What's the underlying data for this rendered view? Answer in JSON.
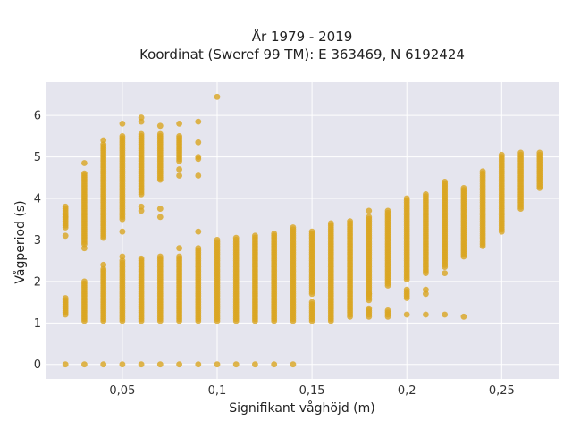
{
  "chart_data": {
    "type": "scatter",
    "title_line1": "År 1979 - 2019",
    "title_line2": "Koordinat (Sweref 99 TM): E 363469, N 6192424",
    "xlabel": "Signifikant våghöjd (m)",
    "ylabel": "Vågperiod (s)",
    "xlim": [
      0.01,
      0.28
    ],
    "ylim": [
      -0.35,
      6.8
    ],
    "x_ticks": [
      0.05,
      0.1,
      0.15,
      0.2,
      0.25
    ],
    "x_tick_labels": [
      "0,05",
      "0,1",
      "0,15",
      "0,2",
      "0,25"
    ],
    "y_ticks": [
      0,
      1,
      2,
      3,
      4,
      5,
      6
    ],
    "y_tick_labels": [
      "0",
      "1",
      "2",
      "3",
      "4",
      "5",
      "6"
    ],
    "grid": true,
    "colors": {
      "background": "#E5E5EE",
      "grid": "#FFFFFF",
      "marker": "#DAA520"
    },
    "columns": [
      {
        "x": 0.02,
        "ranges": [
          [
            1.2,
            1.6
          ],
          [
            3.3,
            3.8
          ]
        ],
        "points": [
          0,
          3.1,
          3.55
        ]
      },
      {
        "x": 0.03,
        "ranges": [
          [
            1.05,
            2.0
          ],
          [
            2.9,
            4.6
          ]
        ],
        "points": [
          0,
          2.8,
          4.85
        ]
      },
      {
        "x": 0.04,
        "ranges": [
          [
            1.05,
            2.3
          ],
          [
            3.05,
            5.3
          ]
        ],
        "points": [
          0,
          2.4,
          5.4
        ]
      },
      {
        "x": 0.05,
        "ranges": [
          [
            1.05,
            2.5
          ],
          [
            3.5,
            5.5
          ]
        ],
        "points": [
          0,
          2.6,
          3.2,
          5.8
        ]
      },
      {
        "x": 0.06,
        "ranges": [
          [
            1.05,
            2.55
          ],
          [
            4.1,
            5.55
          ]
        ],
        "points": [
          0,
          3.7,
          3.8,
          5.85,
          5.95
        ]
      },
      {
        "x": 0.07,
        "ranges": [
          [
            1.05,
            2.6
          ],
          [
            4.45,
            5.55
          ]
        ],
        "points": [
          0,
          3.55,
          3.75,
          5.75
        ]
      },
      {
        "x": 0.08,
        "ranges": [
          [
            1.05,
            2.6
          ],
          [
            4.9,
            5.5
          ]
        ],
        "points": [
          0,
          2.8,
          4.55,
          4.7,
          5.8
        ]
      },
      {
        "x": 0.09,
        "ranges": [
          [
            1.05,
            2.8
          ]
        ],
        "points": [
          0,
          3.2,
          4.55,
          4.95,
          5.0,
          5.35,
          5.85
        ]
      },
      {
        "x": 0.1,
        "ranges": [
          [
            1.05,
            2.95
          ]
        ],
        "points": [
          0,
          3.0,
          6.45
        ]
      },
      {
        "x": 0.11,
        "ranges": [
          [
            1.05,
            3.05
          ]
        ],
        "points": [
          0
        ]
      },
      {
        "x": 0.12,
        "ranges": [
          [
            1.05,
            3.1
          ]
        ],
        "points": [
          0
        ]
      },
      {
        "x": 0.13,
        "ranges": [
          [
            1.05,
            3.15
          ]
        ],
        "points": [
          0
        ]
      },
      {
        "x": 0.14,
        "ranges": [
          [
            1.05,
            3.3
          ]
        ],
        "points": [
          0
        ]
      },
      {
        "x": 0.15,
        "ranges": [
          [
            1.05,
            1.5
          ],
          [
            1.7,
            3.2
          ]
        ],
        "points": []
      },
      {
        "x": 0.16,
        "ranges": [
          [
            1.05,
            3.4
          ]
        ],
        "points": []
      },
      {
        "x": 0.17,
        "ranges": [
          [
            1.15,
            3.45
          ]
        ],
        "points": []
      },
      {
        "x": 0.18,
        "ranges": [
          [
            1.15,
            1.35
          ],
          [
            1.55,
            3.55
          ]
        ],
        "points": [
          1.7,
          3.7
        ]
      },
      {
        "x": 0.19,
        "ranges": [
          [
            1.15,
            1.3
          ],
          [
            1.9,
            3.7
          ]
        ],
        "points": []
      },
      {
        "x": 0.2,
        "ranges": [
          [
            1.6,
            1.8
          ],
          [
            2.05,
            4.0
          ]
        ],
        "points": [
          1.2
        ]
      },
      {
        "x": 0.21,
        "ranges": [
          [
            2.2,
            4.1
          ]
        ],
        "points": [
          1.2,
          1.7,
          1.8
        ]
      },
      {
        "x": 0.22,
        "ranges": [
          [
            2.35,
            4.4
          ]
        ],
        "points": [
          1.2,
          2.2
        ]
      },
      {
        "x": 0.23,
        "ranges": [
          [
            2.6,
            4.25
          ]
        ],
        "points": [
          1.15
        ]
      },
      {
        "x": 0.24,
        "ranges": [
          [
            2.85,
            4.65
          ]
        ],
        "points": []
      },
      {
        "x": 0.25,
        "ranges": [
          [
            3.2,
            5.05
          ]
        ],
        "points": []
      },
      {
        "x": 0.26,
        "ranges": [
          [
            3.75,
            5.1
          ]
        ],
        "points": []
      },
      {
        "x": 0.27,
        "ranges": [
          [
            4.25,
            5.1
          ]
        ],
        "points": []
      }
    ]
  }
}
